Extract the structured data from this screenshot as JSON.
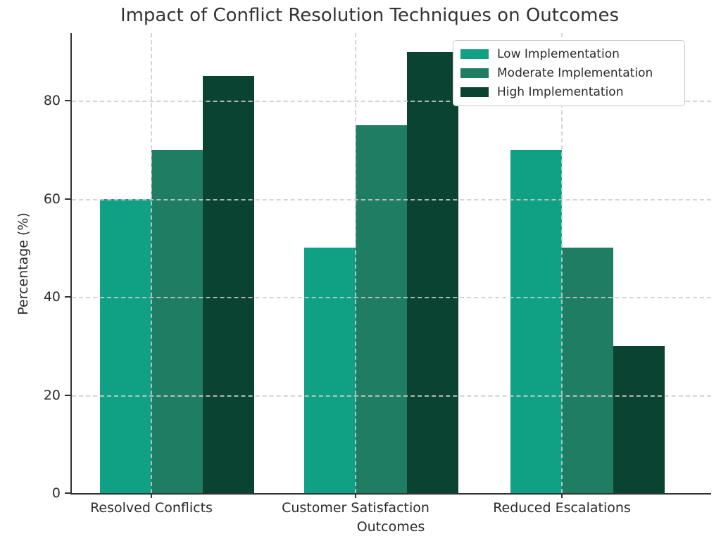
{
  "chart_data": {
    "type": "bar",
    "title": "Impact of Conflict Resolution Techniques on Outcomes",
    "xlabel": "Outcomes",
    "ylabel": "Percentage (%)",
    "categories": [
      "Resolved Conflicts",
      "Customer Satisfaction",
      "Reduced Escalations"
    ],
    "series": [
      {
        "name": "Low Implementation",
        "color": "#10A185",
        "values": [
          60,
          50,
          70
        ]
      },
      {
        "name": "Moderate Implementation",
        "color": "#1E7D63",
        "values": [
          70,
          75,
          50
        ]
      },
      {
        "name": "High Implementation",
        "color": "#0A4331",
        "values": [
          85,
          90,
          30
        ]
      }
    ],
    "yticks": [
      0,
      20,
      40,
      60,
      80
    ],
    "ylim": [
      0,
      93.8
    ],
    "grid": "dashed-both-axes-above-bars",
    "grid_color": "#cdcdcd",
    "spine_color": "#333333",
    "legend_position": "upper right",
    "legend_border_color": "#c9c9c9"
  }
}
